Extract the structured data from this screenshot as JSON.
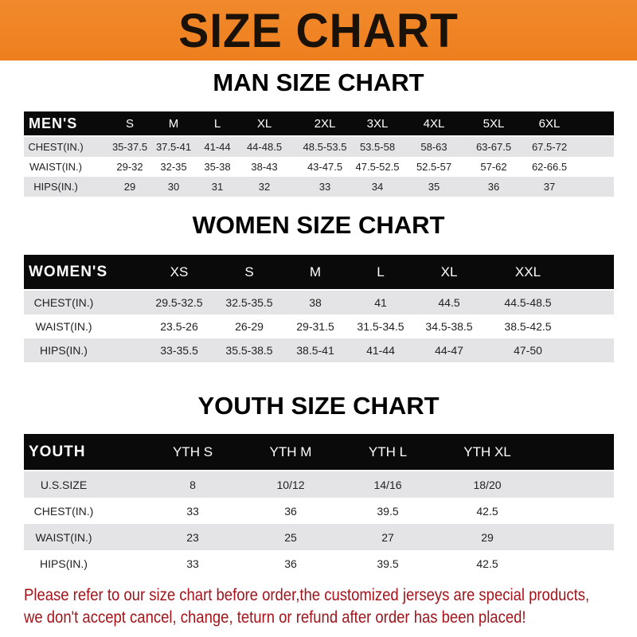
{
  "banner_title": "SIZE CHART",
  "men": {
    "title": "MAN SIZE CHART",
    "header_label": "MEN'S",
    "sizes": [
      "S",
      "M",
      "L",
      "XL",
      "2XL",
      "3XL",
      "4XL",
      "5XL",
      "6XL"
    ],
    "rows": [
      {
        "label": "CHEST(IN.)",
        "values": [
          "35-37.5",
          "37.5-41",
          "41-44",
          "44-48.5",
          "48.5-53.5",
          "53.5-58",
          "58-63",
          "63-67.5",
          "67.5-72"
        ]
      },
      {
        "label": "WAIST(IN.)",
        "values": [
          "29-32",
          "32-35",
          "35-38",
          "38-43",
          "43-47.5",
          "47.5-52.5",
          "52.5-57",
          "57-62",
          "62-66.5"
        ]
      },
      {
        "label": "HIPS(IN.)",
        "values": [
          "29",
          "30",
          "31",
          "32",
          "33",
          "34",
          "35",
          "36",
          "37"
        ]
      }
    ]
  },
  "women": {
    "title": "WOMEN SIZE CHART",
    "header_label": "WOMEN'S",
    "sizes": [
      "XS",
      "S",
      "M",
      "L",
      "XL",
      "XXL"
    ],
    "rows": [
      {
        "label": "CHEST(IN.)",
        "values": [
          "29.5-32.5",
          "32.5-35.5",
          "38",
          "41",
          "44.5",
          "44.5-48.5"
        ]
      },
      {
        "label": "WAIST(IN.)",
        "values": [
          "23.5-26",
          "26-29",
          "29-31.5",
          "31.5-34.5",
          "34.5-38.5",
          "38.5-42.5"
        ]
      },
      {
        "label": "HIPS(IN.)",
        "values": [
          "33-35.5",
          "35.5-38.5",
          "38.5-41",
          "41-44",
          "44-47",
          "47-50"
        ]
      }
    ]
  },
  "youth": {
    "title": "YOUTH SIZE CHART",
    "header_label": "YOUTH",
    "sizes": [
      "YTH S",
      "YTH M",
      "YTH L",
      "YTH XL"
    ],
    "rows": [
      {
        "label": "U.S.SIZE",
        "values": [
          "8",
          "10/12",
          "14/16",
          "18/20"
        ]
      },
      {
        "label": "CHEST(IN.)",
        "values": [
          "33",
          "36",
          "39.5",
          "42.5"
        ]
      },
      {
        "label": "WAIST(IN.)",
        "values": [
          "23",
          "25",
          "27",
          "29"
        ]
      },
      {
        "label": "HIPS(IN.)",
        "values": [
          "33",
          "36",
          "39.5",
          "42.5"
        ]
      }
    ]
  },
  "notice": {
    "line1": "Please refer to our size chart before order,the customized jerseys are special products,",
    "line2": "we don't accept cancel, change, teturn or refund after order has been placed!"
  },
  "colors": {
    "banner": "#ef7f1e",
    "header_row": "#0a0a0a",
    "stripe": "#e4e4e6",
    "notice": "#a3141b"
  }
}
